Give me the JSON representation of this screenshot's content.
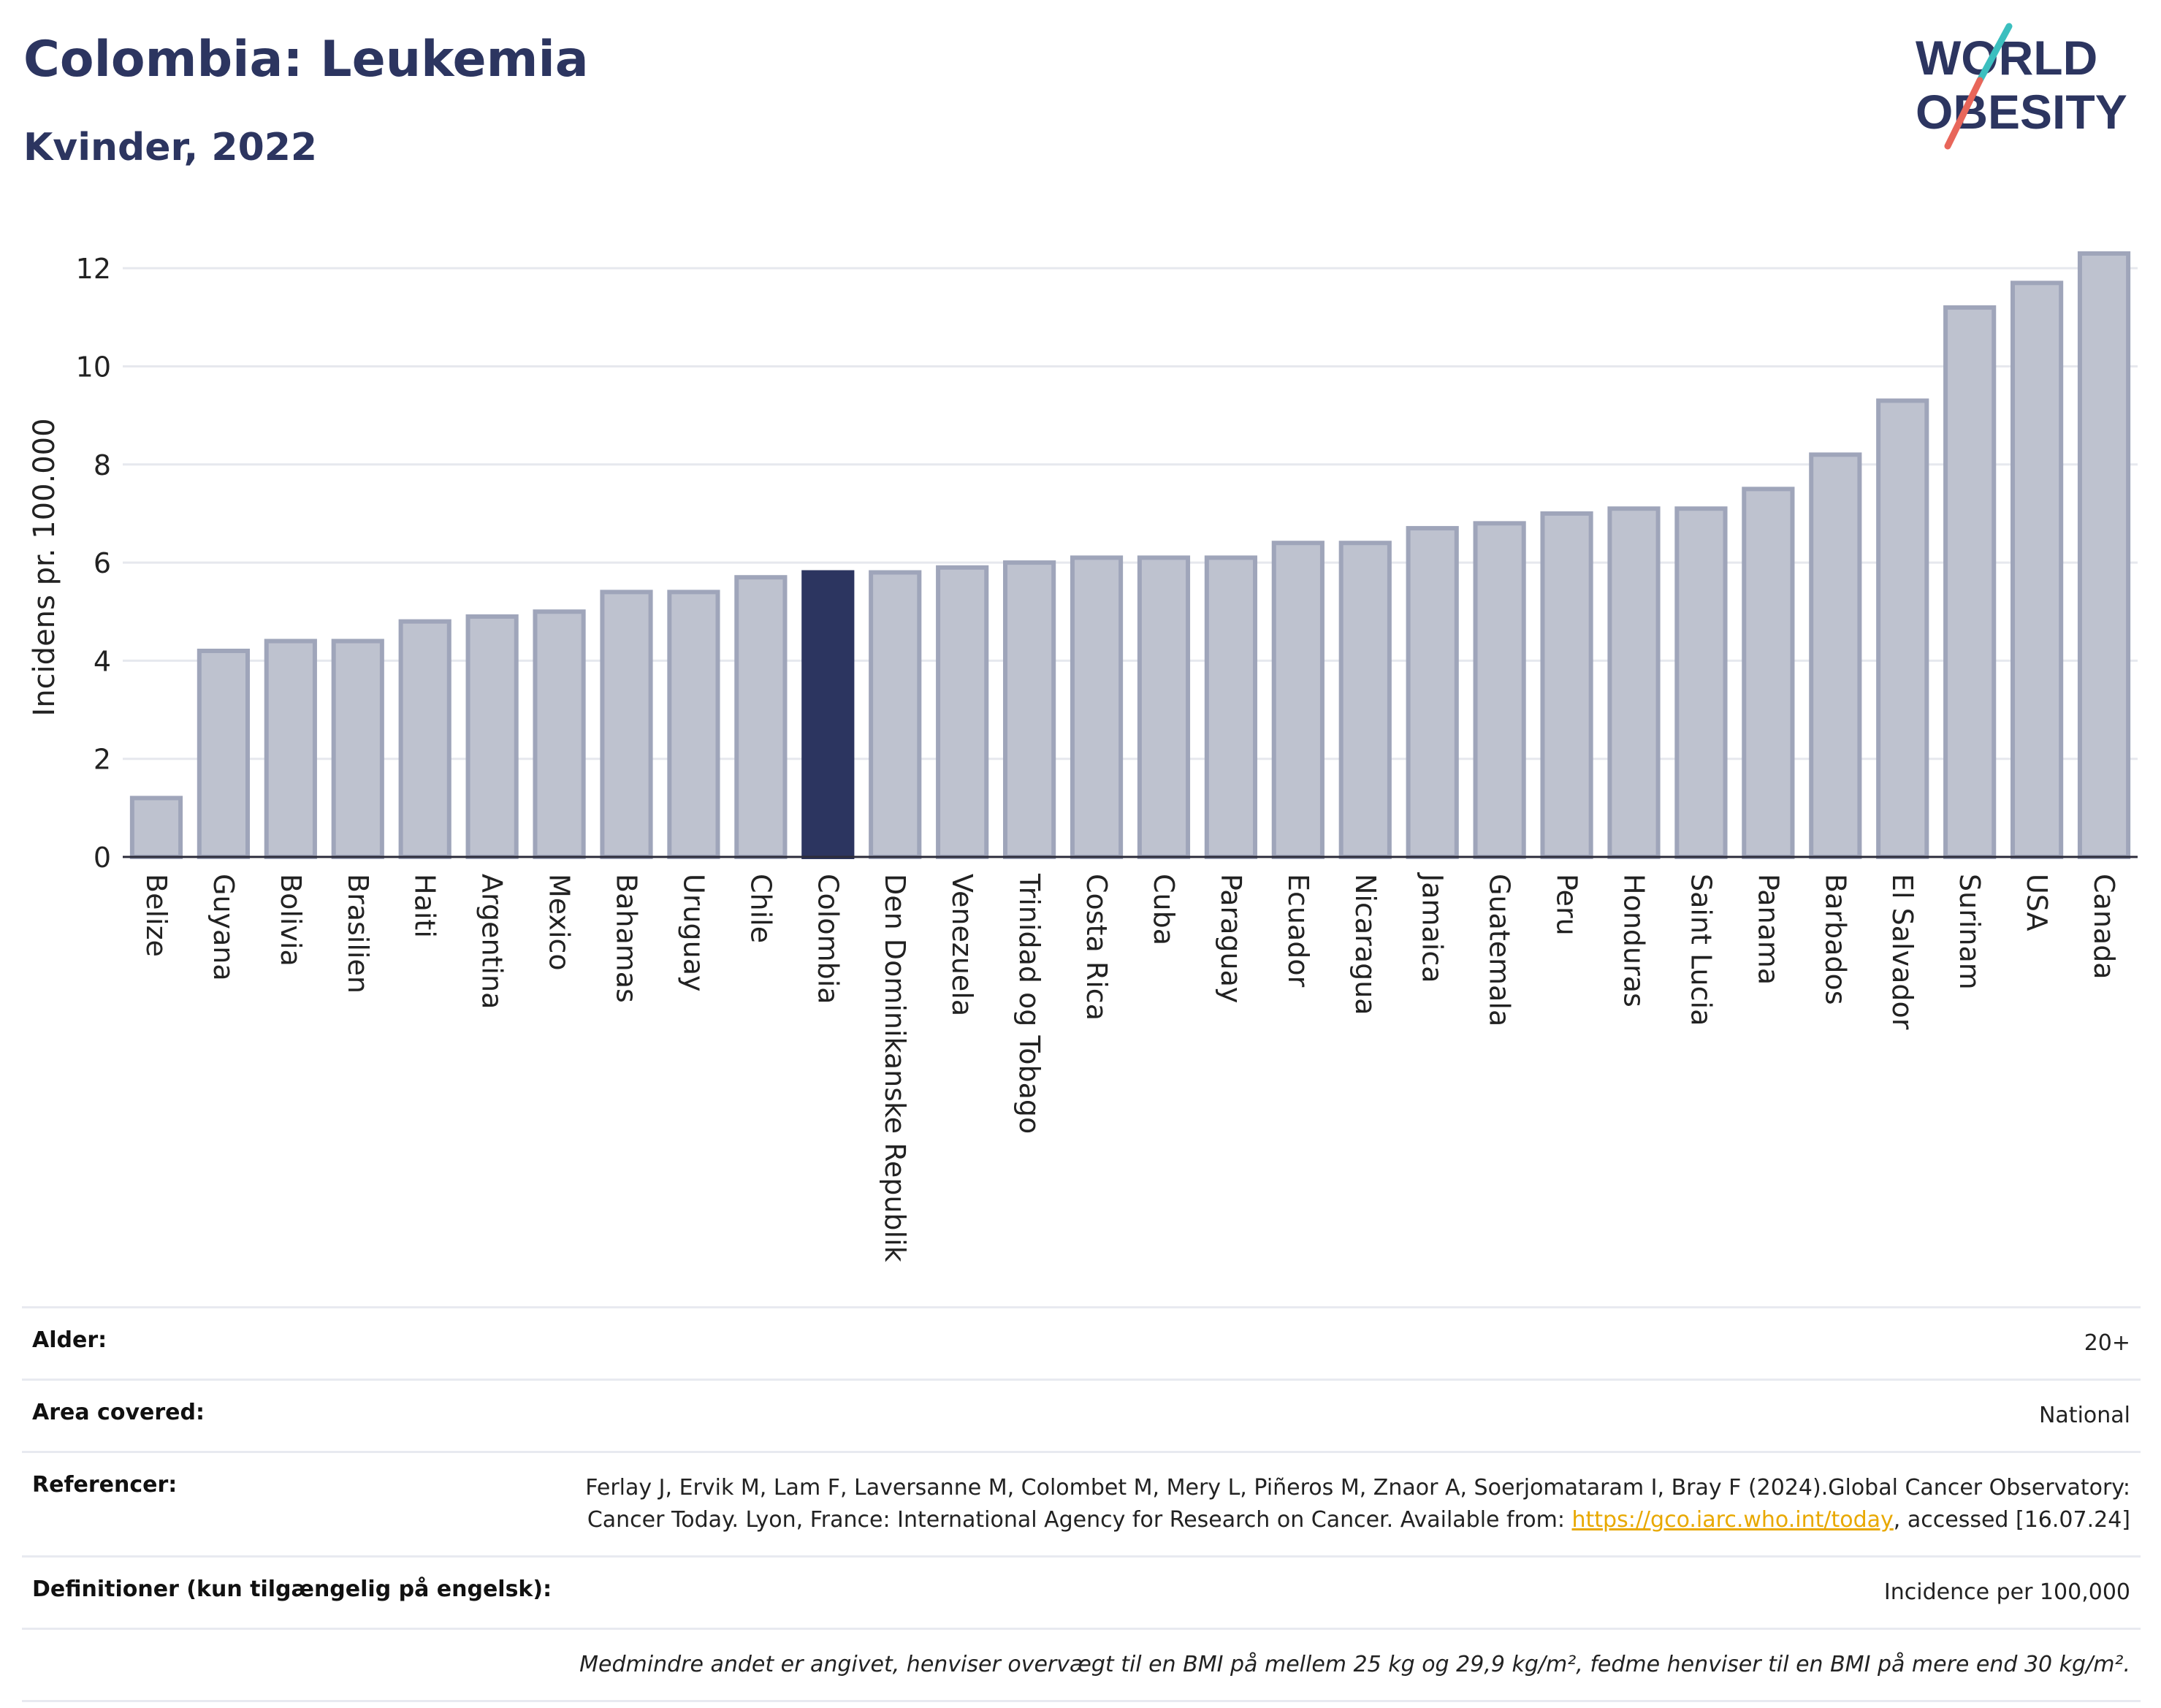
{
  "header": {
    "title": "Colombia: Leukemia",
    "subtitle": "Kvinder, 2022"
  },
  "logo": {
    "line1": "WORLD",
    "line2": "OBESITY"
  },
  "colors": {
    "bar": "#bec2cf",
    "bar_border": "#9fa5ba",
    "highlight": "#2c3560",
    "title": "#2c3560",
    "grid": "#e6e8ee",
    "logo_teal": "#3bbfbf",
    "logo_red": "#e8665a"
  },
  "chart_data": {
    "type": "bar",
    "title": "Colombia: Leukemia",
    "subtitle": "Kvinder, 2022",
    "ylabel": "Incidens pr. 100.000",
    "xlabel": "",
    "ylim": [
      0,
      13
    ],
    "yticks": [
      0,
      2,
      4,
      6,
      8,
      10,
      12
    ],
    "grid": true,
    "highlight": "Colombia",
    "categories": [
      "Belize",
      "Guyana",
      "Bolivia",
      "Brasilien",
      "Haiti",
      "Argentina",
      "Mexico",
      "Bahamas",
      "Uruguay",
      "Chile",
      "Colombia",
      "Den Dominikanske Republik",
      "Venezuela",
      "Trinidad og Tobago",
      "Costa Rica",
      "Cuba",
      "Paraguay",
      "Ecuador",
      "Nicaragua",
      "Jamaica",
      "Guatemala",
      "Peru",
      "Honduras",
      "Saint Lucia",
      "Panama",
      "Barbados",
      "El Salvador",
      "Surinam",
      "USA",
      "Canada"
    ],
    "values": [
      1.2,
      4.2,
      4.4,
      4.4,
      4.8,
      4.9,
      5.0,
      5.4,
      5.4,
      5.7,
      5.8,
      5.8,
      5.9,
      6.0,
      6.1,
      6.1,
      6.1,
      6.4,
      6.4,
      6.7,
      6.8,
      7.0,
      7.1,
      7.1,
      7.5,
      8.2,
      9.3,
      11.2,
      11.7,
      12.3
    ]
  },
  "meta": {
    "age_label": "Alder:",
    "age_value": "20+",
    "area_label": "Area covered:",
    "area_value": "National",
    "ref_label": "Referencer:",
    "ref_text": "Ferlay J, Ervik M, Lam F, Laversanne M, Colombet M, Mery L, Piñeros M, Znaor A, Soerjomataram I, Bray F (2024).Global Cancer Observatory: Cancer Today. Lyon, France: International Agency for Research on Cancer. Available from: ",
    "ref_link": "https://gco.iarc.who.int/today",
    "ref_tail": ", accessed [16.07.24]",
    "def_label": "Definitioner (kun tilgængelig på engelsk):",
    "def_value": "Incidence per 100,000",
    "footnote": "Medmindre andet er angivet, henviser overvægt til en BMI på mellem 25 kg og 29,9 kg/m², fedme henviser til en BMI på mere end 30 kg/m²."
  }
}
